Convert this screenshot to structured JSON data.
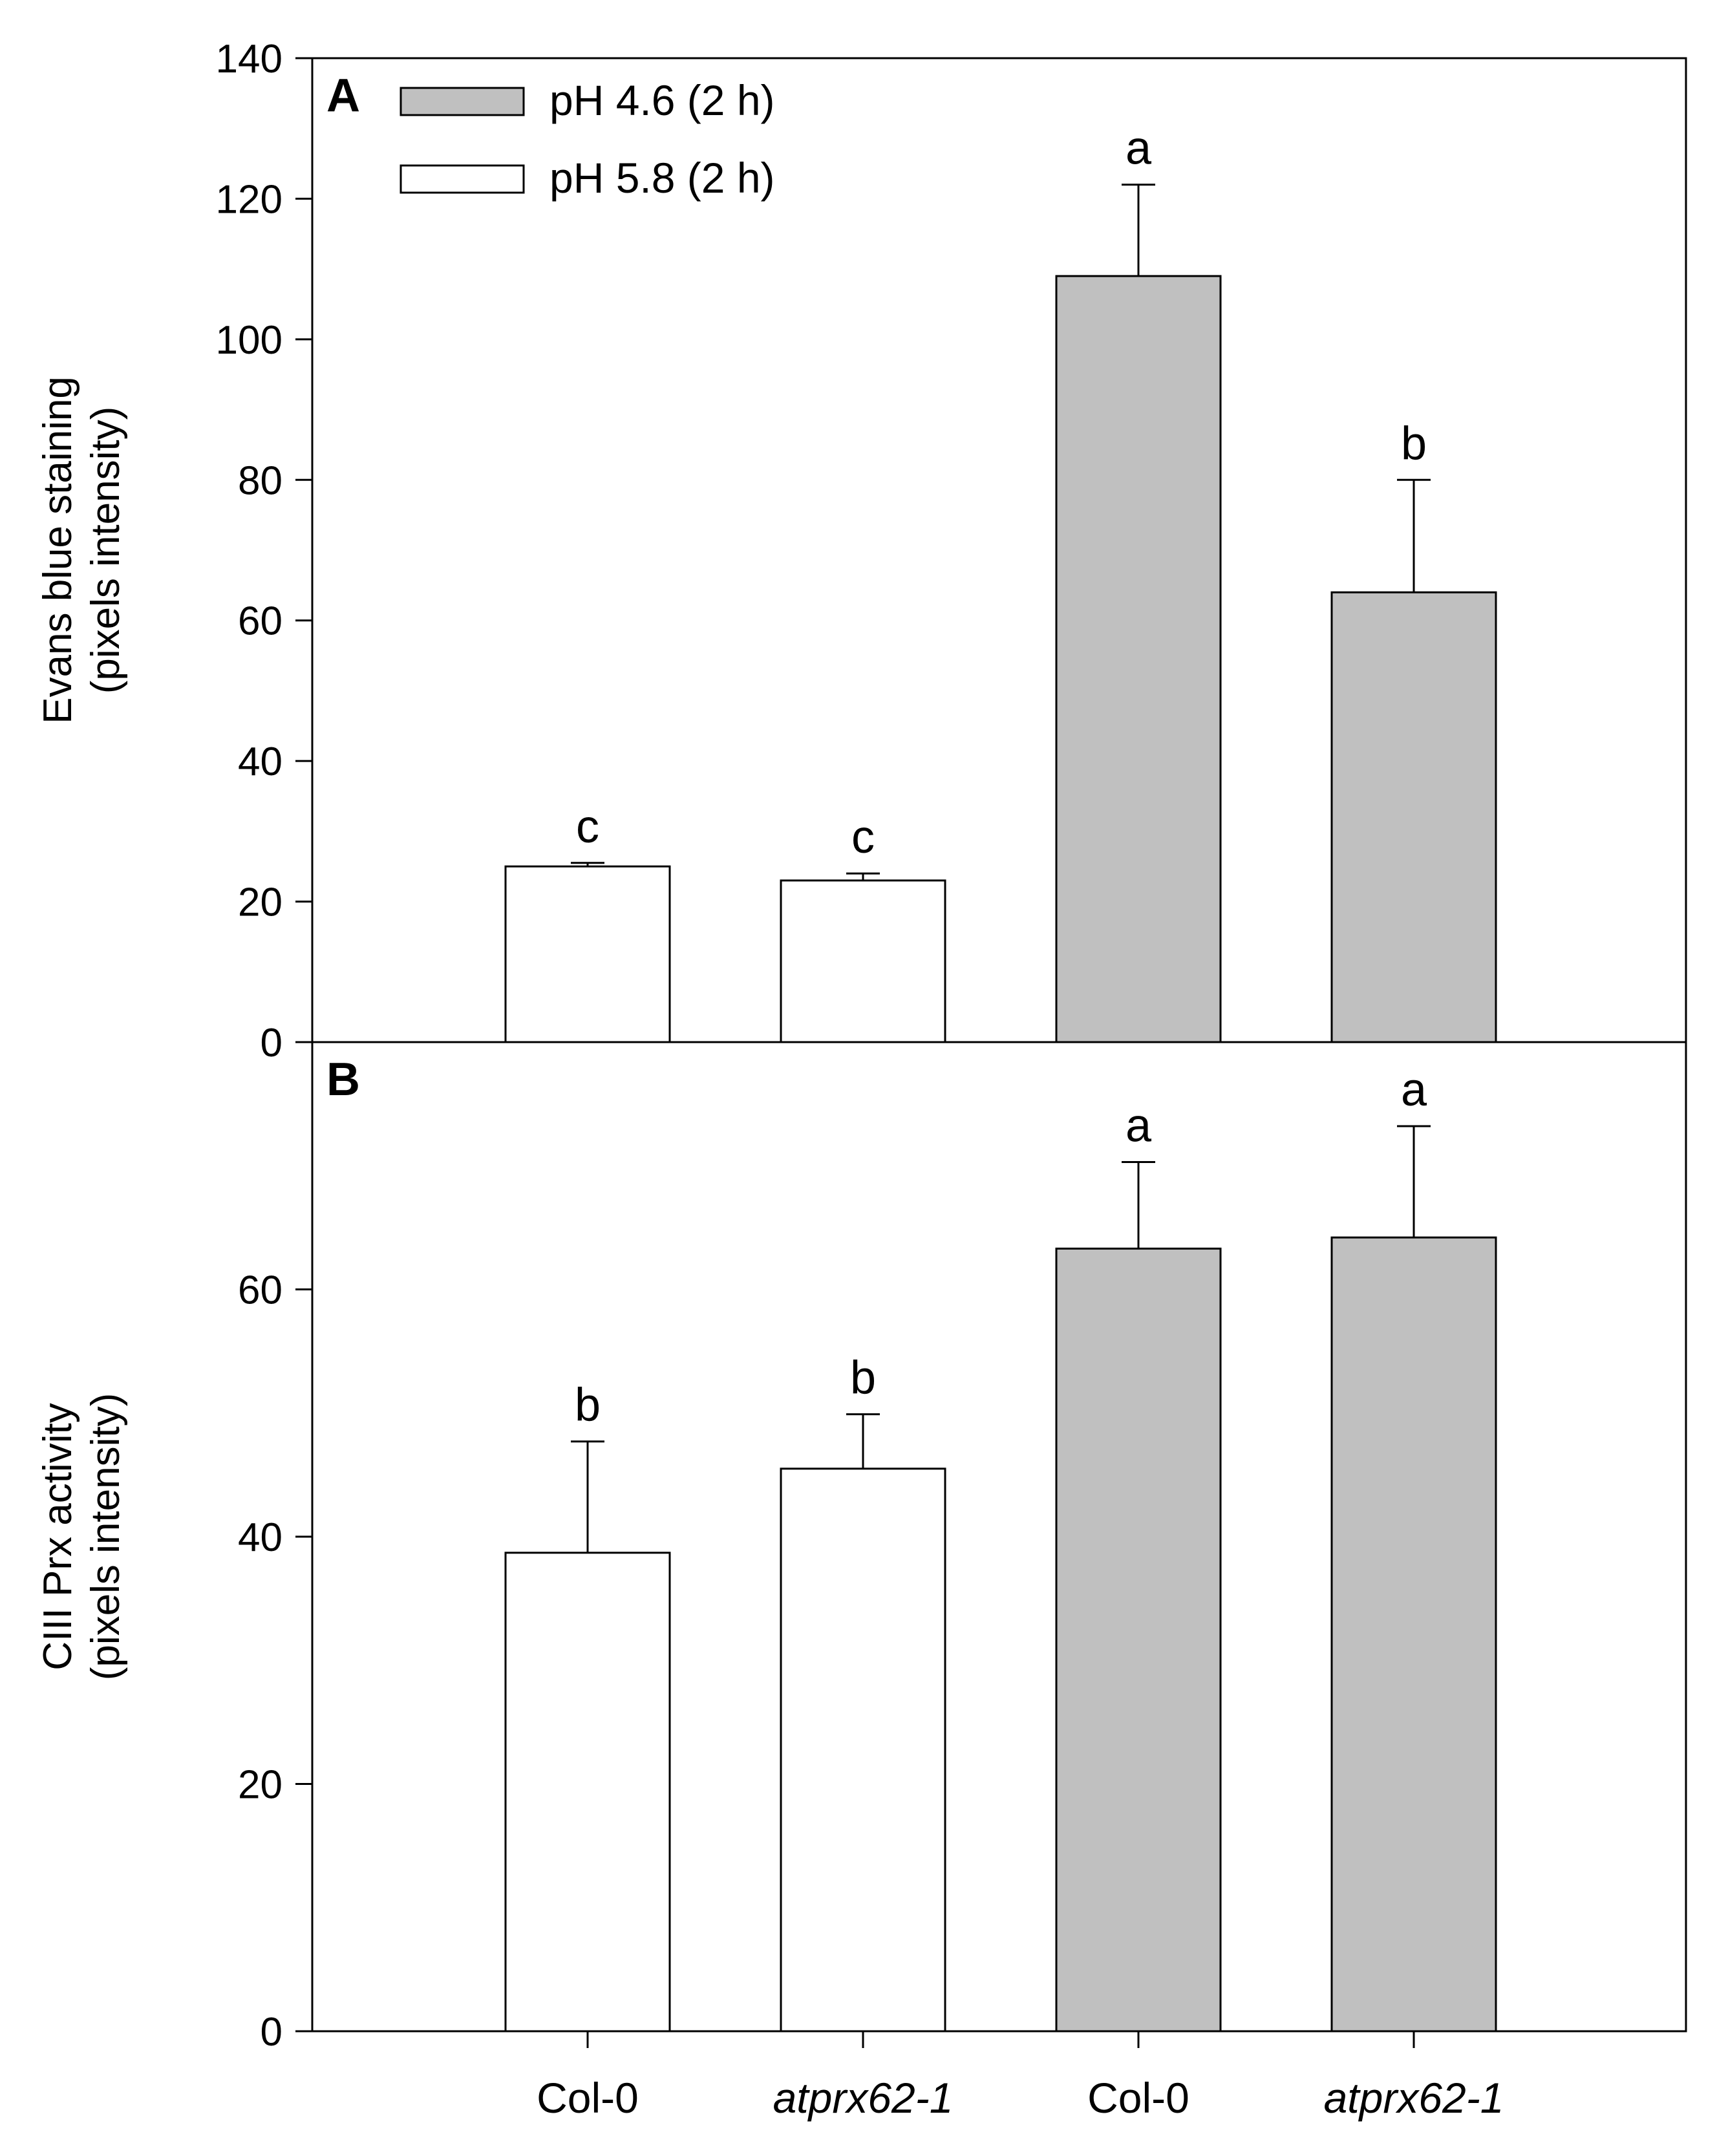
{
  "chart_data": [
    {
      "type": "bar",
      "panel_label": "A",
      "ylabel_lines": [
        "Evans blue staining",
        "(pixels intensity)"
      ],
      "ylim": [
        0,
        140
      ],
      "yticks": [
        0,
        20,
        40,
        60,
        80,
        100,
        120,
        140
      ],
      "categories": [
        "Col-0",
        "atprx62-1",
        "Col-0",
        "atprx62-1"
      ],
      "treatments": [
        "pH 5.8 (2 h)",
        "pH 5.8 (2 h)",
        "pH 4.6 (2 h)",
        "pH 4.6 (2 h)"
      ],
      "values": [
        25,
        23,
        109,
        64
      ],
      "errors": [
        0.5,
        1,
        13,
        16
      ],
      "significance": [
        "c",
        "c",
        "a",
        "b"
      ]
    },
    {
      "type": "bar",
      "panel_label": "B",
      "ylabel_lines": [
        "CIII Prx activity",
        "(pixels intensity)"
      ],
      "ylim": [
        0,
        80
      ],
      "yticks": [
        0,
        20,
        40,
        60
      ],
      "categories": [
        "Col-0",
        "atprx62-1",
        "Col-0",
        "atprx62-1"
      ],
      "treatments": [
        "pH 5.8 (2 h)",
        "pH 5.8 (2 h)",
        "pH 4.6 (2 h)",
        "pH 4.6 (2 h)"
      ],
      "values": [
        38.7,
        45.5,
        63.3,
        64.2
      ],
      "errors": [
        9,
        4.4,
        7,
        9
      ],
      "significance": [
        "b",
        "b",
        "a",
        "a"
      ]
    }
  ],
  "legend": [
    {
      "label": "pH 4.6 (2 h)",
      "color": "#c0c0c0"
    },
    {
      "label": "pH 5.8 (2 h)",
      "color": "#ffffff"
    }
  ],
  "x_categories": [
    {
      "label": "Col-0",
      "italic": false
    },
    {
      "label": "atprx62-1",
      "italic": true
    },
    {
      "label": "Col-0",
      "italic": false
    },
    {
      "label": "atprx62-1",
      "italic": true
    }
  ],
  "colors": {
    "pH 4.6 (2 h)": "#c0c0c0",
    "pH 5.8 (2 h)": "#ffffff",
    "stroke": "#000000"
  }
}
